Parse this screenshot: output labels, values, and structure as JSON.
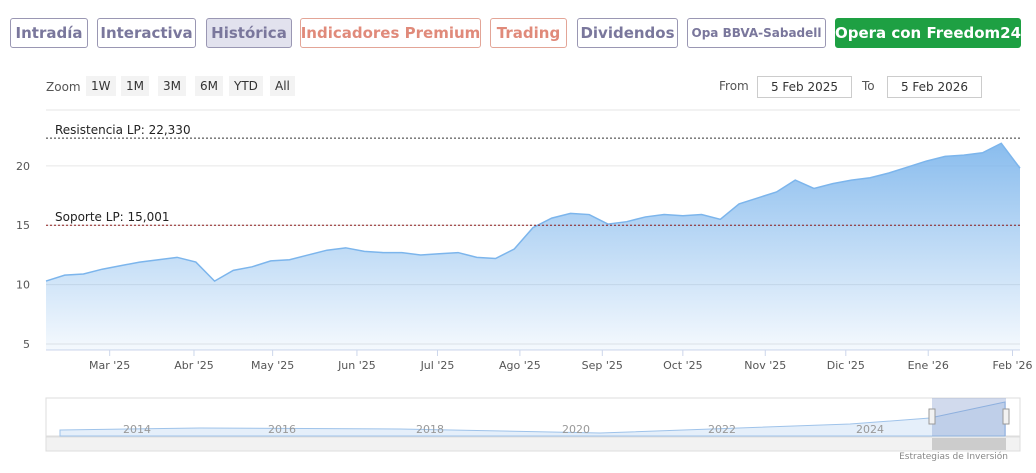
{
  "tabs": [
    "Intradía",
    "Interactiva",
    "Histórica",
    "Indicadores Premium",
    "Trading",
    "Dividendos",
    "Opa BBVA-Sabadell"
  ],
  "cta": "Opera con Freedom24",
  "zoom": {
    "label": "Zoom",
    "buttons": [
      "1W",
      "1M",
      "3M",
      "6M",
      "YTD",
      "All"
    ]
  },
  "range": {
    "from_label": "From",
    "from": "5 Feb 2025",
    "to_label": "To",
    "to": "5 Feb 2026"
  },
  "navigator_labels": [
    "2014",
    "2016",
    "2018",
    "2020",
    "2022",
    "2024"
  ],
  "credit": "Estrategias de Inversión",
  "chart_data": {
    "type": "area",
    "x": [
      0,
      1,
      2,
      3,
      4,
      5,
      6,
      7,
      8,
      9,
      10,
      11,
      12,
      13,
      14,
      15,
      16,
      17,
      18,
      19,
      20,
      21,
      22,
      23,
      24,
      25,
      26,
      27,
      28,
      29,
      30,
      31,
      32,
      33,
      34,
      35,
      36,
      37,
      38,
      39,
      40,
      41,
      42,
      43,
      44,
      45,
      46,
      47,
      48,
      49,
      50,
      51,
      52
    ],
    "series": [
      {
        "color": "#7cb5ec",
        "values": [
          10.3,
          10.8,
          10.9,
          11.3,
          11.6,
          11.9,
          12.1,
          12.3,
          11.9,
          10.3,
          11.2,
          11.5,
          12.0,
          12.1,
          12.5,
          12.9,
          13.1,
          12.8,
          12.7,
          12.7,
          12.5,
          12.6,
          12.7,
          12.3,
          12.2,
          13.0,
          14.8,
          15.6,
          16.0,
          15.9,
          15.1,
          15.3,
          15.7,
          15.9,
          15.8,
          15.9,
          15.5,
          16.8,
          17.3,
          17.8,
          18.8,
          18.1,
          18.5,
          18.8,
          19.0,
          19.4,
          19.9,
          20.4,
          20.8,
          20.9,
          21.1,
          21.9,
          19.8
        ]
      }
    ],
    "xlim": [
      0,
      52
    ],
    "xticks": [
      {
        "value": 3.4,
        "label": "Mar '25"
      },
      {
        "value": 7.9,
        "label": "Abr '25"
      },
      {
        "value": 12.1,
        "label": "May '25"
      },
      {
        "value": 16.6,
        "label": "Jun '25"
      },
      {
        "value": 20.9,
        "label": "Jul '25"
      },
      {
        "value": 25.3,
        "label": "Ago '25"
      },
      {
        "value": 29.7,
        "label": "Sep '25"
      },
      {
        "value": 34.0,
        "label": "Oct '25"
      },
      {
        "value": 38.4,
        "label": "Nov '25"
      },
      {
        "value": 42.7,
        "label": "Dic '25"
      },
      {
        "value": 47.1,
        "label": "Ene '26"
      },
      {
        "value": 51.6,
        "label": "Feb '26"
      }
    ],
    "ylim": [
      4.5,
      24.7
    ],
    "yticks": [
      5,
      10,
      15,
      20
    ],
    "grid": true,
    "annotations": [
      {
        "label": "Resistencia LP: 22,330",
        "value": 22.33,
        "color": "#333333"
      },
      {
        "label": "Soporte LP: 15,001",
        "value": 15.001,
        "color": "#8b1a1a"
      }
    ]
  }
}
